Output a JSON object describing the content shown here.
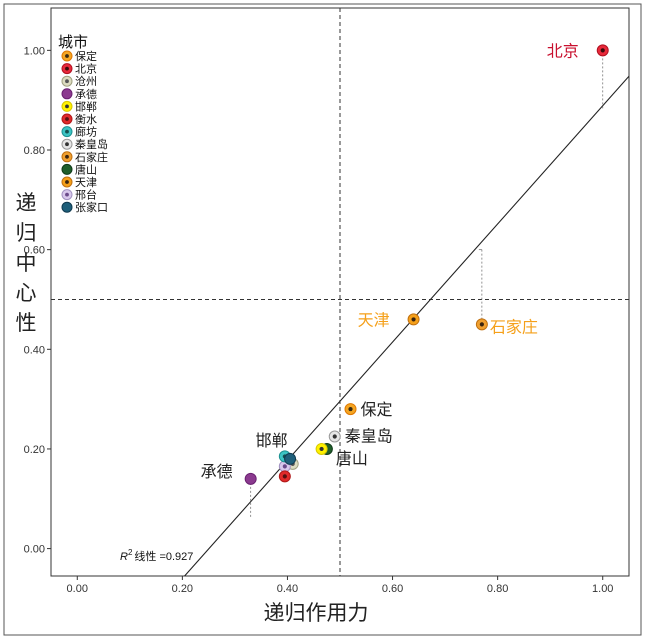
{
  "chart_data": {
    "type": "scatter",
    "xlabel": "递归作用力",
    "ylabel": "递归中心性",
    "xlim": [
      -0.05,
      1.05
    ],
    "ylim": [
      -0.055,
      1.085
    ],
    "xticks": [
      "0.00",
      "0.20",
      "0.40",
      "0.60",
      "0.80",
      "1.00"
    ],
    "yticks": [
      "0.00",
      "0.20",
      "0.40",
      "0.60",
      "0.80",
      "1.00"
    ],
    "x_reference": 0.5,
    "y_reference": 0.5,
    "fit_line": {
      "x0": 0.2,
      "y0": -0.06,
      "x1": 1.06,
      "y1": 0.96
    },
    "r2_label": "线性 =0.927",
    "r2_symbol": "R",
    "r2_sup": "2",
    "legend": {
      "title": "城市",
      "position": "top-left",
      "items": [
        {
          "label": "保定",
          "fill": "#f5a623",
          "center": "#3a2a10",
          "ring": "#e07800"
        },
        {
          "label": "北京",
          "fill": "#e8293a",
          "center": "#3a0a0a",
          "ring": "#b01020"
        },
        {
          "label": "沧州",
          "fill": "#dcdcc0",
          "center": "#555555",
          "ring": "#a0a080"
        },
        {
          "label": "承德",
          "fill": "#8b3a8f",
          "center": "#8b3a8f",
          "ring": "#6a2070"
        },
        {
          "label": "邯郸",
          "fill": "#fff200",
          "center": "#333333",
          "ring": "#d8c800"
        },
        {
          "label": "衡水",
          "fill": "#e02a2a",
          "center": "#551111",
          "ring": "#b01818"
        },
        {
          "label": "廊坊",
          "fill": "#3cc4c4",
          "center": "#145050",
          "ring": "#1a9090"
        },
        {
          "label": "秦皇岛",
          "fill": "#e6e6e6",
          "center": "#333333",
          "ring": "#999999"
        },
        {
          "label": "石家庄",
          "fill": "#f0a030",
          "center": "#3a2410",
          "ring": "#c07010"
        },
        {
          "label": "唐山",
          "fill": "#1f5e2a",
          "center": "#1f5e2a",
          "ring": "#0f3a18"
        },
        {
          "label": "天津",
          "fill": "#f5a01a",
          "center": "#3a2410",
          "ring": "#c07010"
        },
        {
          "label": "邢台",
          "fill": "#d8c8ec",
          "center": "#6a4a8a",
          "ring": "#a090c0"
        },
        {
          "label": "张家口",
          "fill": "#1e5f7a",
          "center": "#1e5f7a",
          "ring": "#103a50"
        }
      ]
    },
    "points": [
      {
        "city": "北京",
        "x": 1.0,
        "y": 1.0,
        "fill": "#e8293a",
        "center": "#3a0a0a",
        "ring": "#b01020",
        "label": "北京",
        "label_color": "#c8102e",
        "label_dx": -56,
        "label_dy": 6,
        "drop_to": 0.88
      },
      {
        "city": "天津",
        "x": 0.64,
        "y": 0.46,
        "fill": "#f5a01a",
        "center": "#3a2410",
        "ring": "#c07010",
        "label": "天津",
        "label_color": "#f5a01a",
        "label_dx": -56,
        "label_dy": 6
      },
      {
        "city": "石家庄",
        "x": 0.77,
        "y": 0.45,
        "fill": "#f0a030",
        "center": "#3a2410",
        "ring": "#c07010",
        "label": "石家庄",
        "label_color": "#f5a01a",
        "label_dx": 8,
        "label_dy": 8,
        "drop_from": 0.6
      },
      {
        "city": "保定",
        "x": 0.52,
        "y": 0.28,
        "fill": "#f5a623",
        "center": "#3a2a10",
        "ring": "#e07800",
        "label": "保定",
        "label_color": "#222222",
        "label_dx": 10,
        "label_dy": 6
      },
      {
        "city": "秦皇岛",
        "x": 0.49,
        "y": 0.225,
        "fill": "#e6e6e6",
        "center": "#333333",
        "ring": "#999999",
        "label": "秦皇岛",
        "label_color": "#222222",
        "label_dx": 10,
        "label_dy": 5
      },
      {
        "city": "唐山",
        "x": 0.475,
        "y": 0.2,
        "fill": "#1f5e2a",
        "center": "#1f5e2a",
        "ring": "#0f3a18",
        "label": "唐山",
        "label_color": "#222222",
        "label_dx": 9,
        "label_dy": 15
      },
      {
        "city": "邯郸",
        "x": 0.465,
        "y": 0.2,
        "fill": "#fff200",
        "center": "#333333",
        "ring": "#d8c800",
        "label": "邯郸",
        "label_color": "#222222",
        "label_dx": -66,
        "label_dy": -3
      },
      {
        "city": "沧州",
        "x": 0.41,
        "y": 0.17,
        "fill": "#dcdcc0",
        "center": "#555555",
        "ring": "#a0a080",
        "label": "",
        "label_color": "#222222",
        "label_dx": 0,
        "label_dy": 0
      },
      {
        "city": "邢台",
        "x": 0.395,
        "y": 0.165,
        "fill": "#d8c8ec",
        "center": "#6a4a8a",
        "ring": "#a090c0",
        "label": "",
        "label_color": "#222222",
        "label_dx": 0,
        "label_dy": 0
      },
      {
        "city": "廊坊",
        "x": 0.395,
        "y": 0.185,
        "fill": "#3cc4c4",
        "center": "#145050",
        "ring": "#1a9090",
        "label": "",
        "label_color": "#222222",
        "label_dx": 0,
        "label_dy": 0
      },
      {
        "city": "张家口",
        "x": 0.405,
        "y": 0.18,
        "fill": "#1e5f7a",
        "center": "#1e5f7a",
        "ring": "#103a50",
        "label": "",
        "label_color": "#222222",
        "label_dx": 0,
        "label_dy": 0
      },
      {
        "city": "衡水",
        "x": 0.395,
        "y": 0.145,
        "fill": "#e02a2a",
        "center": "#551111",
        "ring": "#b01818",
        "label": "",
        "label_color": "#222222",
        "label_dx": 0,
        "label_dy": 0
      },
      {
        "city": "承德",
        "x": 0.33,
        "y": 0.14,
        "fill": "#8b3a8f",
        "center": "#8b3a8f",
        "ring": "#6a2070",
        "label": "承德",
        "label_color": "#222222",
        "label_dx": -50,
        "label_dy": -2,
        "drop_to": 0.06
      }
    ]
  }
}
